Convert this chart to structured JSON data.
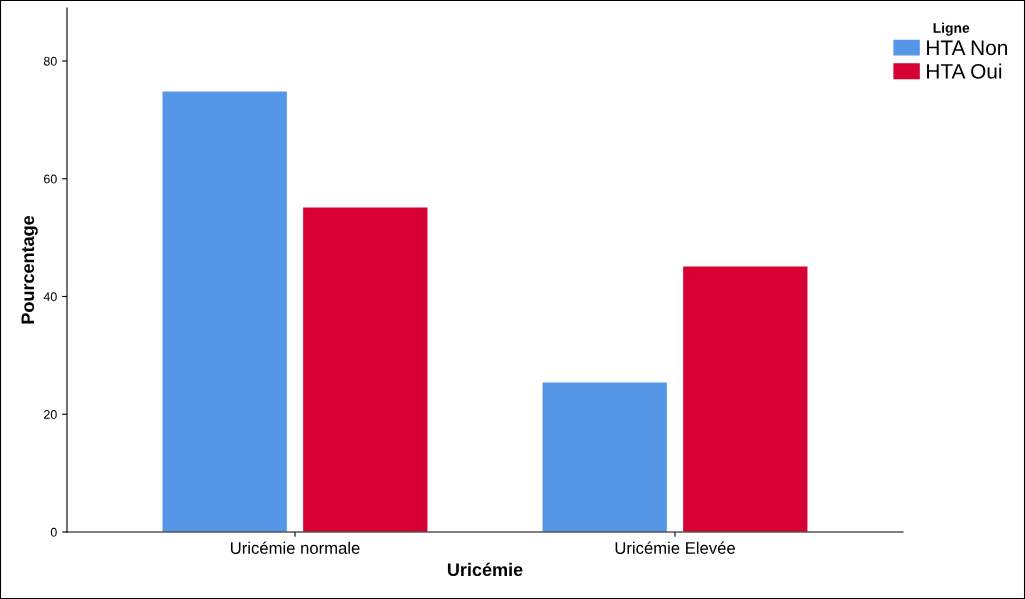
{
  "chart_data": {
    "type": "bar",
    "xlabel": "Uricémie",
    "ylabel": "Pourcentage",
    "legend_title": "Ligne",
    "categories": [
      "Uricémie normale",
      "Uricémie Elevée"
    ],
    "series": [
      {
        "name": "HTA Non",
        "color": "#5596e6",
        "values": [
          74.9,
          25.5
        ]
      },
      {
        "name": "HTA Oui",
        "color": "#d60032",
        "values": [
          55.2,
          45.2
        ]
      }
    ],
    "ylim": [
      0,
      89
    ],
    "yticks": [
      0,
      20,
      40,
      60,
      80
    ],
    "grid": false,
    "legend": "top right"
  }
}
